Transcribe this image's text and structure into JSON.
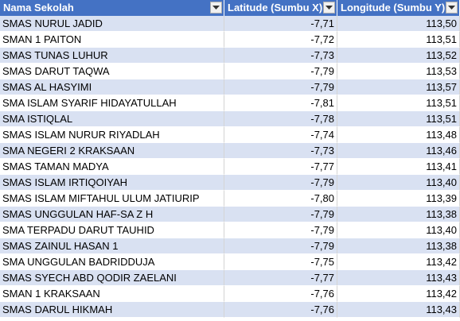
{
  "headers": {
    "name": "Nama Sekolah",
    "lat": "Latitude (Sumbu X)",
    "lon": "Longitude (Sumbu Y)"
  },
  "rows": [
    {
      "name": "SMAS NURUL JADID",
      "lat": "-7,71",
      "lon": "113,50"
    },
    {
      "name": "SMAN 1 PAITON",
      "lat": "-7,72",
      "lon": "113,51"
    },
    {
      "name": "SMAS TUNAS LUHUR",
      "lat": "-7,73",
      "lon": "113,52"
    },
    {
      "name": "SMAS DARUT TAQWA",
      "lat": "-7,79",
      "lon": "113,53"
    },
    {
      "name": "SMAS AL HASYIMI",
      "lat": "-7,79",
      "lon": "113,57"
    },
    {
      "name": "SMA ISLAM SYARIF HIDAYATULLAH",
      "lat": "-7,81",
      "lon": "113,51"
    },
    {
      "name": "SMA ISTIQLAL",
      "lat": "-7,78",
      "lon": "113,51"
    },
    {
      "name": "SMAS ISLAM NURUR RIYADLAH",
      "lat": "-7,74",
      "lon": "113,48"
    },
    {
      "name": "SMA NEGERI 2 KRAKSAAN",
      "lat": "-7,73",
      "lon": "113,46"
    },
    {
      "name": "SMAS TAMAN MADYA",
      "lat": "-7,77",
      "lon": "113,41"
    },
    {
      "name": "SMAS ISLAM IRTIQOIYAH",
      "lat": "-7,79",
      "lon": "113,40"
    },
    {
      "name": "SMAS ISLAM MIFTAHUL ULUM JATIURIP",
      "lat": "-7,80",
      "lon": "113,39"
    },
    {
      "name": "SMAS UNGGULAN HAF-SA Z H",
      "lat": "-7,79",
      "lon": "113,38"
    },
    {
      "name": "SMA TERPADU DARUT TAUHID",
      "lat": "-7,79",
      "lon": "113,40"
    },
    {
      "name": "SMAS ZAINUL HASAN 1",
      "lat": "-7,79",
      "lon": "113,38"
    },
    {
      "name": "SMA UNGGULAN BADRIDDUJA",
      "lat": "-7,75",
      "lon": "113,42"
    },
    {
      "name": "SMAS SYECH ABD QODIR ZAELANI",
      "lat": "-7,77",
      "lon": "113,43"
    },
    {
      "name": "SMAN 1 KRAKSAAN",
      "lat": "-7,76",
      "lon": "113,42"
    },
    {
      "name": "SMAS DARUL HIKMAH",
      "lat": "-7,76",
      "lon": "113,43"
    }
  ],
  "colors": {
    "header_bg": "#4472c4",
    "band_bg": "#d9e1f2",
    "plain_bg": "#ffffff"
  },
  "icons": {
    "filter": "dropdown-arrow-icon"
  }
}
